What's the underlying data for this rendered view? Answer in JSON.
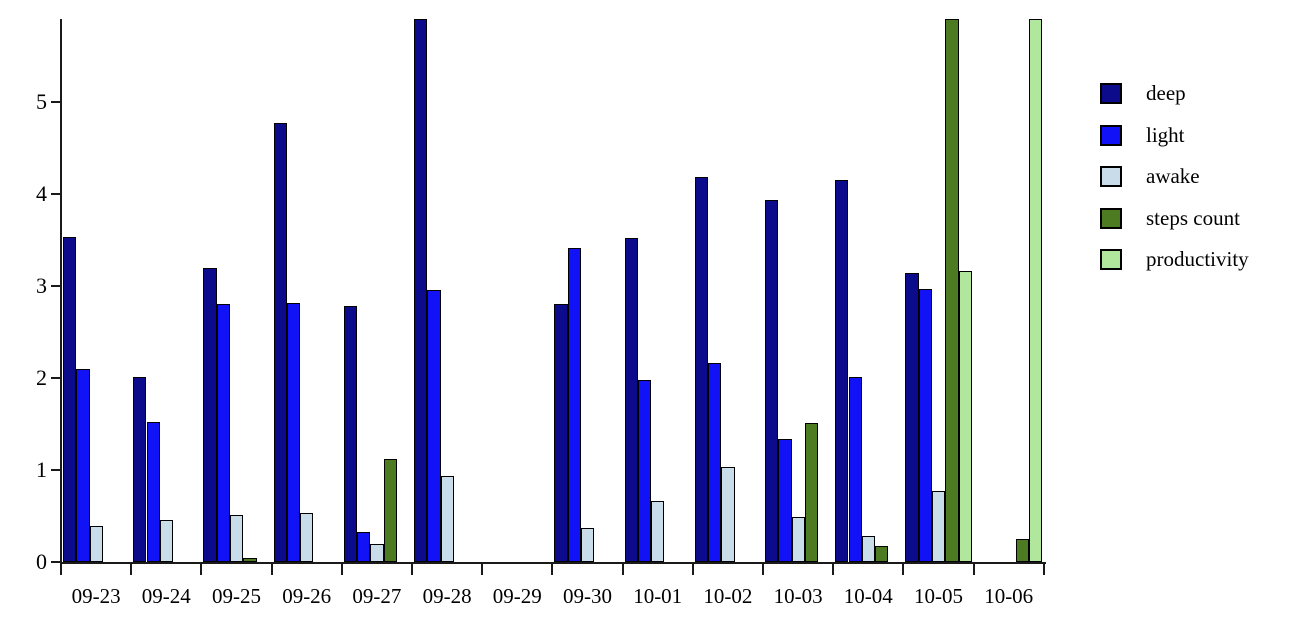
{
  "chart_data": {
    "type": "bar",
    "title": "",
    "xlabel": "",
    "ylabel": "",
    "categories": [
      "09-23",
      "09-24",
      "09-25",
      "09-26",
      "09-27",
      "09-28",
      "09-29",
      "09-30",
      "10-01",
      "10-02",
      "10-03",
      "10-04",
      "10-05",
      "10-06"
    ],
    "series": [
      {
        "name": "deep",
        "color": "#0B0B8B",
        "values": [
          3.53,
          2.01,
          3.2,
          4.77,
          2.78,
          5.9,
          0,
          2.8,
          3.52,
          4.18,
          3.93,
          4.15,
          3.14,
          0
        ]
      },
      {
        "name": "light",
        "color": "#1212F7",
        "values": [
          2.1,
          1.52,
          2.8,
          2.82,
          0.33,
          2.96,
          0,
          3.41,
          1.98,
          2.16,
          1.34,
          2.01,
          2.97,
          0
        ]
      },
      {
        "name": "awake",
        "color": "#C9DCE9",
        "values": [
          0.39,
          0.46,
          0.51,
          0.53,
          0.2,
          0.93,
          0,
          0.37,
          0.66,
          1.03,
          0.49,
          0.28,
          0.77,
          0
        ]
      },
      {
        "name": "steps count",
        "color": "#4D7B21",
        "values": [
          0,
          0,
          0.04,
          0,
          1.12,
          0,
          0,
          0,
          0,
          0,
          1.51,
          0.17,
          5.9,
          0.25
        ]
      },
      {
        "name": "productivity",
        "color": "#B1E79D",
        "values": [
          0,
          0,
          0,
          0,
          0,
          0,
          0,
          0,
          0,
          0,
          0,
          0,
          3.16,
          5.9
        ]
      }
    ],
    "y_ticks": [
      0,
      1,
      2,
      3,
      4,
      5
    ],
    "ylim": [
      0,
      5.95
    ],
    "grid": false,
    "legend_position": "right",
    "axis_color": "#000000",
    "bar_border_color": "#000000",
    "background_color": "#FFFFFF"
  }
}
